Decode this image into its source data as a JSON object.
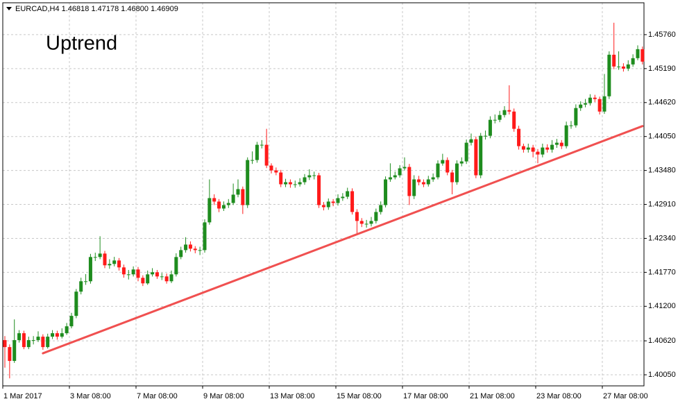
{
  "chart_data": {
    "type": "candlestick",
    "header": "EURCAD,H4  1.46818 1.47178 1.46800 1.46909",
    "annotation": "Uptrend",
    "up_color": "#1e8c1e",
    "down_color": "#ff1a1a",
    "grid": true,
    "ylim": [
      1.39864,
      1.46295
    ],
    "yticks": [
      {
        "value": 1.4005,
        "label": "1.40050"
      },
      {
        "value": 1.4062,
        "label": "1.40620"
      },
      {
        "value": 1.412,
        "label": "1.41200"
      },
      {
        "value": 1.4177,
        "label": "1.41770"
      },
      {
        "value": 1.4234,
        "label": "1.42340"
      },
      {
        "value": 1.4291,
        "label": "1.42910"
      },
      {
        "value": 1.4348,
        "label": "1.43480"
      },
      {
        "value": 1.4405,
        "label": "1.44050"
      },
      {
        "value": 1.4462,
        "label": "1.44620"
      },
      {
        "value": 1.4519,
        "label": "1.45190"
      },
      {
        "value": 1.4576,
        "label": "1.45760"
      }
    ],
    "categories": [
      "1 Mar 2017",
      null,
      null,
      null,
      null,
      null,
      null,
      null,
      null,
      null,
      null,
      null,
      null,
      null,
      "3 Mar 08:00",
      null,
      null,
      null,
      null,
      null,
      null,
      null,
      null,
      null,
      null,
      null,
      null,
      null,
      "7 Mar 08:00",
      null,
      null,
      null,
      null,
      null,
      null,
      null,
      null,
      null,
      null,
      null,
      null,
      null,
      "9 Mar 08:00",
      null,
      null,
      null,
      null,
      null,
      null,
      null,
      null,
      null,
      null,
      null,
      null,
      null,
      "13 Mar 08:00",
      null,
      null,
      null,
      null,
      null,
      null,
      null,
      null,
      null,
      null,
      null,
      null,
      null,
      "15 Mar 08:00",
      null,
      null,
      null,
      null,
      null,
      null,
      null,
      null,
      null,
      null,
      null,
      null,
      null,
      "17 Mar 08:00",
      null,
      null,
      null,
      null,
      null,
      null,
      null,
      null,
      null,
      null,
      null,
      null,
      null,
      "21 Mar 08:00",
      null,
      null,
      null,
      null,
      null,
      null,
      null,
      null,
      null,
      null,
      null,
      null,
      null,
      "23 Mar 08:00",
      null,
      null,
      null,
      null,
      null,
      null,
      null,
      null,
      null,
      null,
      null,
      null,
      null,
      "27 Mar 08:00",
      null,
      null,
      null,
      null,
      null,
      null,
      null,
      null
    ],
    "open": [
      1.40632,
      1.40515,
      1.40283,
      1.40632,
      1.40748,
      1.40515,
      1.40632,
      1.40632,
      1.4069,
      1.40515,
      1.4069,
      1.40748,
      1.4069,
      1.40748,
      1.40864,
      1.41039,
      1.41446,
      1.4162,
      1.4162,
      1.42027,
      1.42027,
      1.42085,
      1.41888,
      1.41911,
      1.41969,
      1.41853,
      1.41736,
      1.41736,
      1.41818,
      1.41678,
      1.41585,
      1.41736,
      1.41771,
      1.41701,
      1.41701,
      1.4162,
      1.41736,
      1.42027,
      1.42143,
      1.42236,
      1.42167,
      1.42143,
      1.42143,
      1.42609,
      1.43016,
      1.42958,
      1.42841,
      1.42899,
      1.42934,
      1.43074,
      1.43167,
      1.42899,
      1.43655,
      1.43655,
      1.43911,
      1.43911,
      1.43562,
      1.43481,
      1.43446,
      1.43248,
      1.43283,
      1.43248,
      1.43248,
      1.43283,
      1.43365,
      1.43399,
      1.43399,
      1.42899,
      1.42864,
      1.42958,
      1.42934,
      1.43016,
      1.43039,
      1.43132,
      1.42783,
      1.42632,
      1.42585,
      1.42585,
      1.42632,
      1.42783,
      1.42899,
      1.4333,
      1.43365,
      1.43399,
      1.43516,
      1.43539,
      1.43051,
      1.4333,
      1.43283,
      1.43248,
      1.4333,
      1.43365,
      1.43597,
      1.43655,
      1.43446,
      1.43283,
      1.43597,
      1.43632,
      1.43946,
      1.44004,
      1.43399,
      1.44062,
      1.44062,
      1.4433,
      1.4433,
      1.44411,
      1.44493,
      1.44469,
      1.44179,
      1.43888,
      1.4383,
      1.43865,
      1.43795,
      1.43748,
      1.43865,
      1.4383,
      1.43911,
      1.43946,
      1.43888,
      1.44237,
      1.44237,
      1.44528,
      1.44586,
      1.44609,
      1.44702,
      1.44679,
      1.44469,
      1.44725,
      1.45423,
      1.45225,
      1.45225,
      1.4519,
      1.4526,
      1.45365,
      1.45516
    ],
    "high": [
      1.407,
      1.4056,
      1.4098,
      1.408,
      1.4079,
      1.4069,
      1.407,
      1.4078,
      1.4073,
      1.4074,
      1.408,
      1.4079,
      1.4083,
      1.4092,
      1.4109,
      1.4149,
      1.4168,
      1.4174,
      1.4208,
      1.421,
      1.42376,
      1.4213,
      1.4199,
      1.4203,
      1.4201,
      1.419,
      1.4181,
      1.4187,
      1.4186,
      1.4172,
      1.418,
      1.4184,
      1.4181,
      1.4176,
      1.4175,
      1.418,
      1.4209,
      1.422,
      1.4236,
      1.4229,
      1.4221,
      1.422,
      1.4266,
      1.4333,
      1.4308,
      1.43,
      1.4296,
      1.43,
      1.4326,
      1.4333,
      1.4321,
      1.437,
      1.438,
      1.4396,
      1.4399,
      1.44179,
      1.436,
      1.4353,
      1.4349,
      1.4334,
      1.4333,
      1.4331,
      1.4335,
      1.4342,
      1.435,
      1.4346,
      1.4344,
      1.4295,
      1.4301,
      1.43,
      1.4308,
      1.431,
      1.4319,
      1.4318,
      1.4283,
      1.4268,
      1.4265,
      1.427,
      1.4284,
      1.4296,
      1.4338,
      1.436,
      1.4346,
      1.4357,
      1.437,
      1.4359,
      1.434,
      1.4339,
      1.4333,
      1.4339,
      1.4343,
      1.4365,
      1.4376,
      1.437,
      1.4349,
      1.4365,
      1.437,
      1.44,
      1.441,
      1.4405,
      1.4411,
      1.4415,
      1.4439,
      1.4442,
      1.4448,
      1.4456,
      1.4491,
      1.4452,
      1.4423,
      1.4393,
      1.4393,
      1.4391,
      1.4384,
      1.4393,
      1.4392,
      1.4399,
      1.4401,
      1.4399,
      1.443,
      1.4431,
      1.4459,
      1.4464,
      1.4468,
      1.4476,
      1.4475,
      1.4472,
      1.451,
      1.4548,
      1.4596,
      1.4548,
      1.4528,
      1.4533,
      1.4543,
      1.4558,
      1.4556
    ],
    "low": [
      1.4017,
      1.3999,
      1.4025,
      1.4059,
      1.4048,
      1.4048,
      1.4056,
      1.406,
      1.4047,
      1.4049,
      1.4065,
      1.4064,
      1.4066,
      1.4072,
      1.4083,
      1.41,
      1.414,
      1.4156,
      1.4158,
      1.4196,
      1.4199,
      1.4184,
      1.4183,
      1.4187,
      1.418,
      1.4168,
      1.4165,
      1.417,
      1.4162,
      1.4154,
      1.4156,
      1.417,
      1.4166,
      1.4164,
      1.4158,
      1.4159,
      1.417,
      1.4199,
      1.421,
      1.4212,
      1.4209,
      1.4206,
      1.421,
      1.4257,
      1.429,
      1.4278,
      1.428,
      1.4285,
      1.429,
      1.4303,
      1.4275,
      1.4285,
      1.4359,
      1.4361,
      1.4385,
      1.4352,
      1.4343,
      1.434,
      1.432,
      1.432,
      1.4319,
      1.4319,
      1.4321,
      1.4324,
      1.4332,
      1.4333,
      1.4285,
      1.4281,
      1.4282,
      1.4288,
      1.4289,
      1.4297,
      1.43,
      1.4274,
      1.4242,
      1.4253,
      1.4252,
      1.4254,
      1.4259,
      1.4274,
      1.4286,
      1.4329,
      1.4333,
      1.4336,
      1.4348,
      1.429,
      1.43,
      1.4323,
      1.432,
      1.4321,
      1.4329,
      1.4333,
      1.4356,
      1.434,
      1.4308,
      1.4324,
      1.4355,
      1.4359,
      1.439,
      1.4335,
      1.4335,
      1.44,
      1.4402,
      1.4427,
      1.4429,
      1.4437,
      1.4442,
      1.4413,
      1.4383,
      1.4378,
      1.4378,
      1.437,
      1.436,
      1.437,
      1.4378,
      1.4378,
      1.4386,
      1.4384,
      1.4385,
      1.4418,
      1.442,
      1.4448,
      1.4454,
      1.4457,
      1.4463,
      1.4442,
      1.4443,
      1.4468,
      1.4518,
      1.4517,
      1.4514,
      1.4515,
      1.4522,
      1.4533,
      1.4526
    ],
    "close": [
      1.40515,
      1.40283,
      1.40632,
      1.40748,
      1.40515,
      1.40632,
      1.40632,
      1.4069,
      1.40515,
      1.4069,
      1.40748,
      1.4069,
      1.40748,
      1.40864,
      1.41039,
      1.41446,
      1.4162,
      1.4162,
      1.42027,
      1.42027,
      1.42085,
      1.41888,
      1.41911,
      1.41969,
      1.41853,
      1.41736,
      1.41736,
      1.41818,
      1.41678,
      1.41585,
      1.41736,
      1.41771,
      1.41701,
      1.41701,
      1.4162,
      1.41736,
      1.42027,
      1.42143,
      1.42236,
      1.42167,
      1.42143,
      1.42143,
      1.42609,
      1.43016,
      1.42958,
      1.42841,
      1.42899,
      1.42934,
      1.43074,
      1.43167,
      1.42899,
      1.43655,
      1.43655,
      1.43911,
      1.43911,
      1.43562,
      1.43481,
      1.43446,
      1.43248,
      1.43283,
      1.43248,
      1.43248,
      1.43283,
      1.43365,
      1.43399,
      1.43399,
      1.42899,
      1.42864,
      1.42958,
      1.42934,
      1.43016,
      1.43039,
      1.43132,
      1.42783,
      1.42632,
      1.42585,
      1.42585,
      1.42632,
      1.42783,
      1.42899,
      1.4333,
      1.43365,
      1.43399,
      1.43516,
      1.43539,
      1.43051,
      1.4333,
      1.43283,
      1.43248,
      1.4333,
      1.43365,
      1.43597,
      1.43655,
      1.43446,
      1.43283,
      1.43597,
      1.43632,
      1.43946,
      1.44004,
      1.43399,
      1.44062,
      1.44062,
      1.4433,
      1.4433,
      1.44411,
      1.44493,
      1.44469,
      1.44179,
      1.43888,
      1.4383,
      1.43865,
      1.43795,
      1.43748,
      1.43865,
      1.4383,
      1.43911,
      1.43946,
      1.43888,
      1.44237,
      1.44237,
      1.44528,
      1.44586,
      1.44609,
      1.44702,
      1.44679,
      1.44469,
      1.44725,
      1.45423,
      1.45225,
      1.45225,
      1.4519,
      1.4526,
      1.45365,
      1.45516,
      1.45307
    ],
    "trend_line": {
      "start": [
        8,
        1.40411
      ],
      "end": [
        134,
        1.44225
      ],
      "color": "#f05050"
    }
  }
}
